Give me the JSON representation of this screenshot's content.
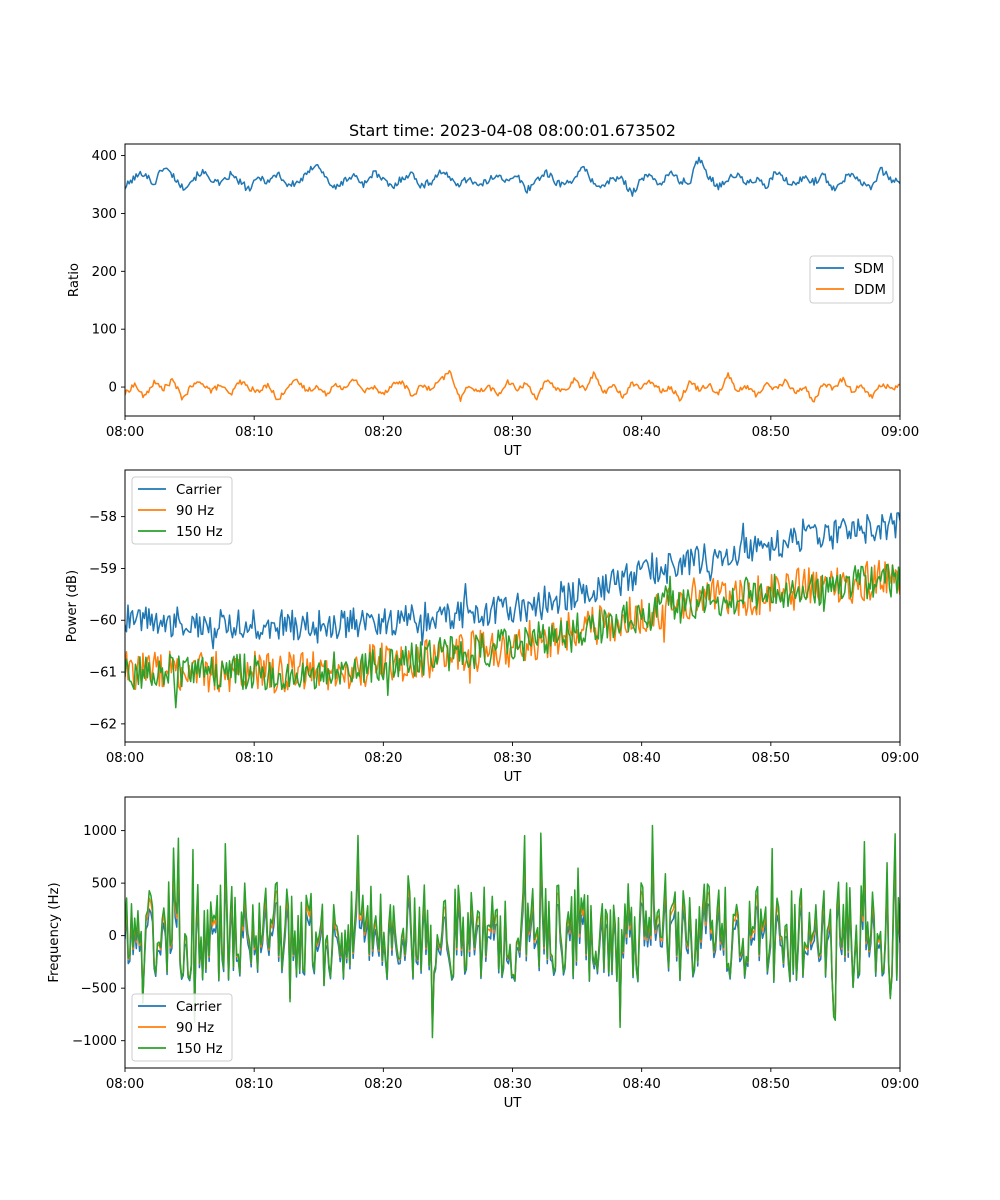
{
  "chart_data": [
    {
      "type": "line",
      "title": "Start time: 2023-04-08 08:00:01.673502",
      "xlabel": "UT",
      "ylabel": "Ratio",
      "xlim": [
        "08:00",
        "09:00"
      ],
      "xticks": [
        "08:00",
        "08:10",
        "08:20",
        "08:30",
        "08:40",
        "08:50",
        "09:00"
      ],
      "ylim": [
        -50,
        420
      ],
      "yticks": [
        0,
        100,
        200,
        300,
        400
      ],
      "yticklabels": [
        "0",
        "100",
        "200",
        "300",
        "400"
      ],
      "grid": false,
      "legend_position": "center-right",
      "series": [
        {
          "name": "SDM",
          "color": "#1f77b4",
          "mean": 356,
          "amplitude": 14,
          "values": [
            345,
            362,
            371,
            350,
            381,
            366,
            344,
            358,
            372,
            360,
            349,
            367,
            354,
            341,
            363,
            355,
            370,
            348,
            353,
            366,
            389,
            361,
            342,
            358,
            365,
            350,
            372,
            357,
            344,
            363,
            368,
            347,
            355,
            374,
            359,
            351,
            362,
            346,
            357,
            369,
            353,
            365,
            340,
            358,
            371,
            355,
            349,
            363,
            378,
            352,
            346,
            361,
            358,
            335,
            360,
            365,
            350,
            371,
            356,
            353,
            398,
            364,
            347,
            359,
            367,
            351,
            360,
            344,
            372,
            357,
            349,
            363,
            355,
            366,
            342,
            358,
            371,
            353,
            347,
            375,
            360,
            352
          ]
        },
        {
          "name": "DDM",
          "color": "#ff7f0e",
          "mean": 0,
          "amplitude": 10,
          "values": [
            -12,
            5,
            -18,
            8,
            -3,
            12,
            -20,
            2,
            9,
            -7,
            4,
            -15,
            11,
            -2,
            -9,
            6,
            -25,
            3,
            10,
            -6,
            1,
            -13,
            7,
            -4,
            15,
            -8,
            0,
            -11,
            5,
            9,
            -16,
            3,
            -5,
            12,
            27,
            -22,
            4,
            -9,
            2,
            -14,
            8,
            -3,
            6,
            -19,
            10,
            -1,
            -7,
            13,
            -5,
            24,
            -10,
            3,
            -17,
            7,
            -2,
            11,
            -6,
            0,
            -21,
            9,
            -4,
            5,
            -12,
            22,
            -8,
            2,
            -15,
            6,
            -3,
            10,
            -9,
            1,
            -26,
            8,
            -4,
            14,
            -7,
            3,
            -18,
            5,
            -2,
            2
          ]
        }
      ]
    },
    {
      "type": "line",
      "title": "",
      "xlabel": "UT",
      "ylabel": "Power (dB)",
      "xlim": [
        "08:00",
        "09:00"
      ],
      "xticks": [
        "08:00",
        "08:10",
        "08:20",
        "08:30",
        "08:40",
        "08:50",
        "09:00"
      ],
      "ylim": [
        -62.35,
        -57.1
      ],
      "yticks": [
        -62,
        -61,
        -60,
        -59,
        -58
      ],
      "yticklabels": [
        "−62",
        "−61",
        "−60",
        "−59",
        "−58"
      ],
      "grid": false,
      "legend_position": "top-left",
      "series": [
        {
          "name": "Carrier",
          "color": "#1f77b4",
          "trend": [
            [
              0,
              -60.0
            ],
            [
              15,
              -60.1
            ],
            [
              30,
              -59.8
            ],
            [
              45,
              -58.8
            ],
            [
              60,
              -58.1
            ]
          ],
          "amplitude": 0.3
        },
        {
          "name": "90 Hz",
          "color": "#ff7f0e",
          "trend": [
            [
              0,
              -61.0
            ],
            [
              15,
              -61.0
            ],
            [
              30,
              -60.5
            ],
            [
              45,
              -59.6
            ],
            [
              60,
              -59.2
            ]
          ],
          "amplitude": 0.4
        },
        {
          "name": "150 Hz",
          "color": "#2ca02c",
          "trend": [
            [
              0,
              -61.0
            ],
            [
              15,
              -61.0
            ],
            [
              30,
              -60.5
            ],
            [
              45,
              -59.6
            ],
            [
              60,
              -59.2
            ]
          ],
          "amplitude": 0.35
        }
      ]
    },
    {
      "type": "line",
      "title": "",
      "xlabel": "UT",
      "ylabel": "Frequency (Hz)",
      "xlim": [
        "08:00",
        "09:00"
      ],
      "xticks": [
        "08:00",
        "08:10",
        "08:20",
        "08:30",
        "08:40",
        "08:50",
        "09:00"
      ],
      "ylim": [
        -1260,
        1320
      ],
      "yticks": [
        -1000,
        -500,
        0,
        500,
        1000
      ],
      "yticklabels": [
        "−1000",
        "−500",
        "0",
        "500",
        "1000"
      ],
      "grid": false,
      "legend_position": "bottom-left",
      "series": [
        {
          "name": "Carrier",
          "color": "#1f77b4",
          "offset": -60,
          "amplitude": 380
        },
        {
          "name": "90 Hz",
          "color": "#ff7f0e",
          "offset": -30,
          "amplitude": 380
        },
        {
          "name": "150 Hz",
          "color": "#2ca02c",
          "offset": 0,
          "amplitude": 380
        }
      ]
    }
  ]
}
